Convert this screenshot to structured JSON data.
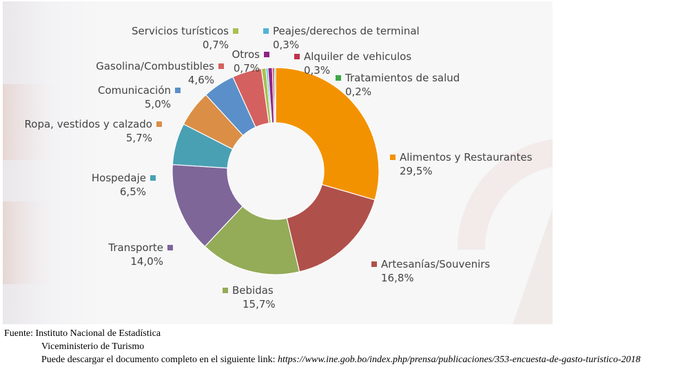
{
  "chart_data": {
    "type": "pie",
    "donut": true,
    "legend_placement": "labels-around-slices",
    "slices": [
      {
        "label": "Alimentos y Restaurantes",
        "value": 29.5,
        "value_label": "29,5%",
        "color": "#f39200"
      },
      {
        "label": "Artesanías/Souvenirs",
        "value": 16.8,
        "value_label": "16,8%",
        "color": "#b0504b"
      },
      {
        "label": "Bebidas",
        "value": 15.7,
        "value_label": "15,7%",
        "color": "#94ab58"
      },
      {
        "label": "Transporte",
        "value": 14.0,
        "value_label": "14,0%",
        "color": "#7e6699"
      },
      {
        "label": "Hospedaje",
        "value": 6.5,
        "value_label": "6,5%",
        "color": "#4aa0b3"
      },
      {
        "label": "Ropa, vestidos y calzado",
        "value": 5.7,
        "value_label": "5,7%",
        "color": "#db8e46"
      },
      {
        "label": "Comunicación",
        "value": 5.0,
        "value_label": "5,0%",
        "color": "#5b8fc9"
      },
      {
        "label": "Gasolina/Combustibles",
        "value": 4.6,
        "value_label": "4,6%",
        "color": "#d4615f"
      },
      {
        "label": "Servicios turísticos",
        "value": 0.7,
        "value_label": "0,7%",
        "color": "#a8c050"
      },
      {
        "label": "Peajes/derechos de terminal",
        "value": 0.3,
        "value_label": "0,3%",
        "color": "#4fb3d4"
      },
      {
        "label": "Otros",
        "value": 0.7,
        "value_label": "0,7%",
        "color": "#8e2585"
      },
      {
        "label": "Alquiler de vehiculos",
        "value": 0.3,
        "value_label": "0,3%",
        "color": "#c0314a"
      },
      {
        "label": "Tratamientos de salud",
        "value": 0.2,
        "value_label": "0,2%",
        "color": "#3fa845"
      }
    ]
  },
  "source": {
    "line1": "Fuente: Instituto Nacional de Estadística",
    "line2": "Viceministerio de Turismo",
    "line3_text": "Puede descargar el documento completo en el siguiente link: ",
    "line3_link": "https://www.ine.gob.bo/index.php/prensa/publicaciones/353-encuesta-de-gasto-turistico-2018"
  }
}
